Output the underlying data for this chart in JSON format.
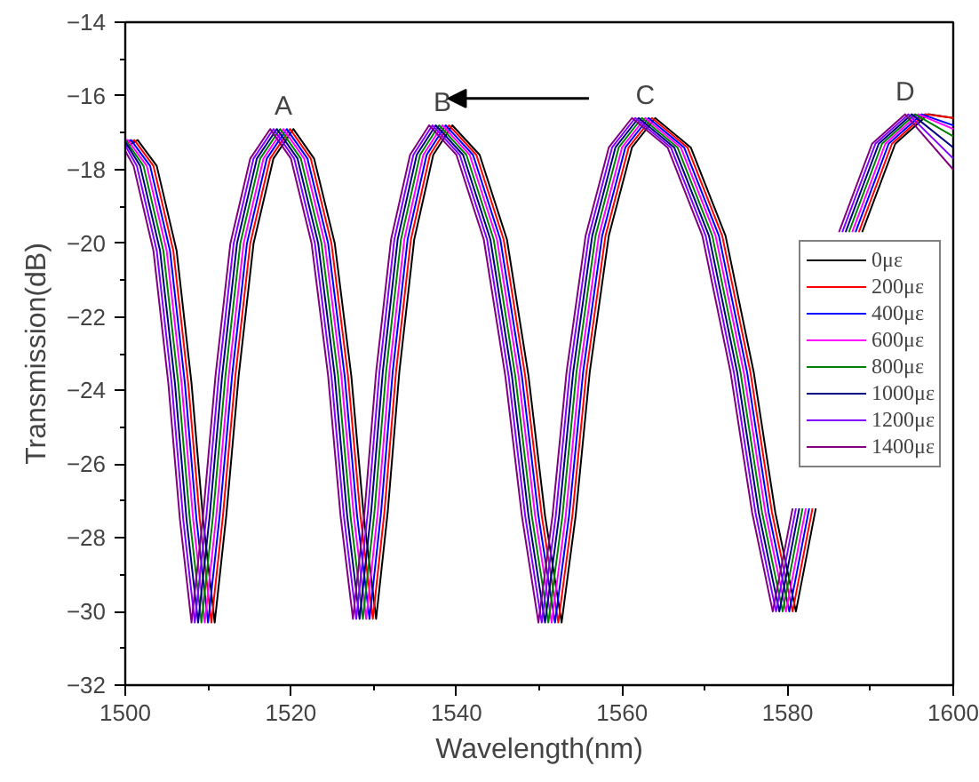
{
  "chart_data": {
    "type": "line",
    "xlabel": "Wavelength(nm)",
    "ylabel": "Transmission(dB)",
    "xlim": [
      1500,
      1600
    ],
    "ylim": [
      -32,
      -14
    ],
    "xticks": [
      1500,
      1520,
      1540,
      1560,
      1580,
      1600
    ],
    "yticks": [
      -32,
      -30,
      -28,
      -26,
      -24,
      -22,
      -20,
      -18,
      -16,
      -14
    ],
    "grid": false,
    "legend": "right",
    "marker": "none",
    "line_style": "solid",
    "annotations": [
      {
        "text": "A",
        "x": 1519.1,
        "y": -16.9
      },
      {
        "text": "B",
        "x": 1538.3,
        "y": -16.8
      },
      {
        "text": "C",
        "x": 1562.8,
        "y": -16.6
      },
      {
        "text": "D",
        "x": 1594.2,
        "y": -16.5
      }
    ],
    "series": [
      {
        "name": "0με",
        "color": "#000000",
        "x": [
          1500,
          1501.5,
          1503.8,
          1506.2,
          1508.0,
          1509.4,
          1510.8,
          1512.2,
          1513.7,
          1515.5,
          1517.9,
          1520.3,
          1522.8,
          1525.3,
          1527.3,
          1528.8,
          1530.3,
          1531.7,
          1533.1,
          1534.9,
          1537.2,
          1539.5,
          1542.8,
          1546.1,
          1548.7,
          1550.7,
          1552.7,
          1554.4,
          1556.1,
          1558.4,
          1561.2,
          1564.0,
          1568.3,
          1572.5,
          1575.9,
          1578.5,
          1581.0,
          1583.4,
          1585.8,
          1589.0,
          1593.0,
          1597.0,
          1600
        ],
        "values": [
          -17.4,
          -17.2,
          -17.9,
          -20.2,
          -23.8,
          -27.5,
          -30.3,
          -27.4,
          -23.6,
          -20.0,
          -17.7,
          -16.9,
          -17.7,
          -20.0,
          -23.6,
          -27.4,
          -30.2,
          -27.3,
          -23.5,
          -19.9,
          -17.6,
          -16.8,
          -17.6,
          -19.9,
          -23.6,
          -27.4,
          -30.3,
          -27.4,
          -23.5,
          -19.8,
          -17.4,
          -16.6,
          -17.4,
          -19.8,
          -23.5,
          -27.3,
          -30.0,
          -27.2,
          null,
          -19.7,
          -17.3,
          -16.5,
          -16.6
        ]
      },
      {
        "name": "200με",
        "color": "#ff0000",
        "x": [
          1500,
          1501.1,
          1503.4,
          1505.8,
          1507.6,
          1509.0,
          1510.4,
          1511.8,
          1513.3,
          1515.1,
          1517.5,
          1519.9,
          1522.4,
          1524.9,
          1526.9,
          1528.4,
          1529.9,
          1531.3,
          1532.7,
          1534.5,
          1536.8,
          1539.1,
          1542.4,
          1545.7,
          1548.3,
          1550.3,
          1552.3,
          1554.0,
          1555.7,
          1558.0,
          1560.8,
          1563.6,
          1567.9,
          1572.1,
          1575.5,
          1578.1,
          1580.6,
          1583.0,
          1585.4,
          1588.6,
          1592.6,
          1596.6,
          1600
        ],
        "values": [
          -17.3,
          -17.2,
          -17.9,
          -20.2,
          -23.8,
          -27.5,
          -30.3,
          -27.4,
          -23.6,
          -20.0,
          -17.7,
          -16.9,
          -17.7,
          -20.0,
          -23.6,
          -27.4,
          -30.2,
          -27.3,
          -23.5,
          -19.9,
          -17.6,
          -16.8,
          -17.6,
          -19.9,
          -23.6,
          -27.4,
          -30.3,
          -27.4,
          -23.5,
          -19.8,
          -17.4,
          -16.6,
          -17.4,
          -19.8,
          -23.5,
          -27.3,
          -30.0,
          -27.2,
          null,
          -19.7,
          -17.3,
          -16.5,
          -16.6
        ]
      },
      {
        "name": "400με",
        "color": "#0000ff",
        "x": [
          1500,
          1500.7,
          1503.0,
          1505.4,
          1507.2,
          1508.6,
          1510.0,
          1511.4,
          1512.9,
          1514.7,
          1517.1,
          1519.5,
          1522.0,
          1524.5,
          1526.5,
          1528.0,
          1529.5,
          1530.9,
          1532.3,
          1534.1,
          1536.4,
          1538.7,
          1542.0,
          1545.3,
          1547.9,
          1549.9,
          1551.9,
          1553.6,
          1555.3,
          1557.6,
          1560.4,
          1563.2,
          1567.5,
          1571.7,
          1575.1,
          1577.7,
          1580.2,
          1582.6,
          1585.0,
          1588.2,
          1592.2,
          1596.2,
          1600
        ],
        "values": [
          -17.25,
          -17.2,
          -17.9,
          -20.2,
          -23.8,
          -27.5,
          -30.3,
          -27.4,
          -23.6,
          -20.0,
          -17.7,
          -16.9,
          -17.7,
          -20.0,
          -23.6,
          -27.4,
          -30.2,
          -27.3,
          -23.5,
          -19.9,
          -17.6,
          -16.8,
          -17.6,
          -19.9,
          -23.6,
          -27.4,
          -30.3,
          -27.4,
          -23.5,
          -19.8,
          -17.4,
          -16.6,
          -17.4,
          -19.8,
          -23.5,
          -27.3,
          -30.0,
          -27.2,
          null,
          -19.7,
          -17.3,
          -16.5,
          -16.8
        ]
      },
      {
        "name": "600με",
        "color": "#ff00ff",
        "x": [
          1500,
          1500.3,
          1502.6,
          1505.0,
          1506.8,
          1508.2,
          1509.6,
          1511.0,
          1512.5,
          1514.3,
          1516.7,
          1519.1,
          1521.6,
          1524.1,
          1526.1,
          1527.6,
          1529.1,
          1530.5,
          1531.9,
          1533.7,
          1536.0,
          1538.3,
          1541.6,
          1544.9,
          1547.5,
          1549.5,
          1551.5,
          1553.2,
          1554.9,
          1557.2,
          1560.0,
          1562.8,
          1567.1,
          1571.3,
          1574.7,
          1577.3,
          1579.8,
          1582.2,
          1584.6,
          1587.8,
          1591.8,
          1595.8,
          1600
        ],
        "values": [
          -17.2,
          -17.2,
          -17.9,
          -20.2,
          -23.8,
          -27.5,
          -30.3,
          -27.4,
          -23.6,
          -20.0,
          -17.7,
          -16.9,
          -17.7,
          -20.0,
          -23.6,
          -27.4,
          -30.2,
          -27.3,
          -23.5,
          -19.9,
          -17.6,
          -16.8,
          -17.6,
          -19.9,
          -23.6,
          -27.4,
          -30.3,
          -27.4,
          -23.5,
          -19.8,
          -17.4,
          -16.6,
          -17.4,
          -19.8,
          -23.5,
          -27.3,
          -30.0,
          -27.2,
          null,
          -19.7,
          -17.3,
          -16.5,
          -16.9
        ]
      },
      {
        "name": "800με",
        "color": "#008000",
        "x": [
          1500,
          1502.2,
          1504.6,
          1506.4,
          1507.8,
          1509.2,
          1510.6,
          1512.1,
          1513.9,
          1516.3,
          1518.7,
          1521.2,
          1523.7,
          1525.7,
          1527.2,
          1528.7,
          1530.1,
          1531.5,
          1533.3,
          1535.6,
          1537.9,
          1541.2,
          1544.5,
          1547.1,
          1549.1,
          1551.1,
          1552.8,
          1554.5,
          1556.8,
          1559.6,
          1562.4,
          1566.7,
          1570.9,
          1574.3,
          1576.9,
          1579.4,
          1581.8,
          1584.2,
          1587.4,
          1591.4,
          1595.4,
          1600
        ],
        "values": [
          -17.2,
          -17.9,
          -20.2,
          -23.8,
          -27.5,
          -30.3,
          -27.4,
          -23.6,
          -20.0,
          -17.7,
          -16.9,
          -17.7,
          -20.0,
          -23.6,
          -27.4,
          -30.2,
          -27.3,
          -23.5,
          -19.9,
          -17.6,
          -16.8,
          -17.6,
          -19.9,
          -23.6,
          -27.4,
          -30.3,
          -27.4,
          -23.5,
          -19.8,
          -17.4,
          -16.6,
          -17.4,
          -19.8,
          -23.5,
          -27.3,
          -30.0,
          -27.2,
          null,
          -19.7,
          -17.3,
          -16.5,
          -17.1
        ]
      },
      {
        "name": "1000με",
        "color": "#000080",
        "x": [
          1500,
          1501.8,
          1504.2,
          1506.0,
          1507.4,
          1508.8,
          1510.2,
          1511.7,
          1513.5,
          1515.9,
          1518.3,
          1520.8,
          1523.3,
          1525.3,
          1526.8,
          1528.3,
          1529.7,
          1531.1,
          1532.9,
          1535.2,
          1537.5,
          1540.8,
          1544.1,
          1546.7,
          1548.7,
          1550.7,
          1552.4,
          1554.1,
          1556.4,
          1559.2,
          1562.0,
          1566.3,
          1570.5,
          1573.9,
          1576.5,
          1579.0,
          1581.4,
          1583.8,
          1587.0,
          1591.0,
          1595.0,
          1600
        ],
        "values": [
          -17.25,
          -17.9,
          -20.2,
          -23.8,
          -27.5,
          -30.3,
          -27.4,
          -23.6,
          -20.0,
          -17.7,
          -16.9,
          -17.7,
          -20.0,
          -23.6,
          -27.4,
          -30.2,
          -27.3,
          -23.5,
          -19.9,
          -17.6,
          -16.8,
          -17.6,
          -19.9,
          -23.6,
          -27.4,
          -30.3,
          -27.4,
          -23.5,
          -19.8,
          -17.4,
          -16.6,
          -17.4,
          -19.8,
          -23.5,
          -27.3,
          -30.0,
          -27.2,
          null,
          -19.7,
          -17.3,
          -16.5,
          -17.4
        ]
      },
      {
        "name": "1200με",
        "color": "#8000ff",
        "x": [
          1500,
          1501.4,
          1503.8,
          1505.6,
          1507.0,
          1508.4,
          1509.8,
          1511.3,
          1513.1,
          1515.5,
          1517.9,
          1520.4,
          1522.9,
          1524.9,
          1526.4,
          1527.9,
          1529.3,
          1530.7,
          1532.5,
          1534.8,
          1537.1,
          1540.4,
          1543.7,
          1546.3,
          1548.3,
          1550.3,
          1552.0,
          1553.7,
          1556.0,
          1558.8,
          1561.6,
          1565.9,
          1570.1,
          1573.5,
          1576.1,
          1578.6,
          1581.0,
          1583.4,
          1586.6,
          1590.6,
          1594.6,
          1600
        ],
        "values": [
          -17.35,
          -17.9,
          -20.2,
          -23.8,
          -27.5,
          -30.3,
          -27.4,
          -23.6,
          -20.0,
          -17.7,
          -16.9,
          -17.7,
          -20.0,
          -23.6,
          -27.4,
          -30.2,
          -27.3,
          -23.5,
          -19.9,
          -17.6,
          -16.8,
          -17.6,
          -19.9,
          -23.6,
          -27.4,
          -30.3,
          -27.4,
          -23.5,
          -19.8,
          -17.4,
          -16.6,
          -17.4,
          -19.8,
          -23.5,
          -27.3,
          -30.0,
          -27.2,
          null,
          -19.7,
          -17.3,
          -16.5,
          -17.7
        ]
      },
      {
        "name": "1400με",
        "color": "#800080",
        "x": [
          1500,
          1501.0,
          1503.4,
          1505.2,
          1506.6,
          1508.0,
          1509.4,
          1510.9,
          1512.7,
          1515.1,
          1517.5,
          1520.0,
          1522.5,
          1524.5,
          1526.0,
          1527.5,
          1528.9,
          1530.3,
          1532.1,
          1534.4,
          1536.7,
          1540.0,
          1543.3,
          1545.9,
          1547.9,
          1549.9,
          1551.6,
          1553.3,
          1555.6,
          1558.4,
          1561.2,
          1565.5,
          1569.7,
          1573.1,
          1575.7,
          1578.2,
          1580.6,
          1583.0,
          1586.2,
          1590.2,
          1594.2,
          1600
        ],
        "values": [
          -17.5,
          -17.9,
          -20.2,
          -23.8,
          -27.5,
          -30.3,
          -27.4,
          -23.6,
          -20.0,
          -17.7,
          -16.9,
          -17.7,
          -20.0,
          -23.6,
          -27.4,
          -30.2,
          -27.3,
          -23.5,
          -19.9,
          -17.6,
          -16.8,
          -17.6,
          -19.9,
          -23.6,
          -27.4,
          -30.3,
          -27.4,
          -23.5,
          -19.8,
          -17.4,
          -16.6,
          -17.4,
          -19.8,
          -23.5,
          -27.3,
          -30.0,
          -27.2,
          null,
          -19.7,
          -17.3,
          -16.5,
          -18.0
        ]
      }
    ]
  }
}
